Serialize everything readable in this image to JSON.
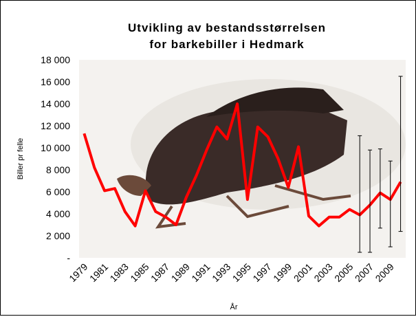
{
  "chart_data": {
    "type": "line",
    "title": "Utvikling av bestandsstørrelsen",
    "subtitle": "for barkebiller i Hedmark",
    "y_label": "Biller pr felle",
    "x_label": "År",
    "categories": [
      "1979",
      null,
      "1981",
      null,
      "1983",
      null,
      "1985",
      null,
      "1987",
      null,
      "1989",
      null,
      "1991",
      null,
      "1993",
      null,
      "1995",
      null,
      "1997",
      null,
      "1999",
      null,
      "2001",
      null,
      "2003",
      null,
      "2005",
      null,
      "2007",
      null,
      "2009",
      null
    ],
    "series": [
      {
        "color": "#ff0000",
        "values": [
          11300,
          8200,
          6100,
          6300,
          4200,
          2900,
          6100,
          4200,
          3700,
          3000,
          5500,
          7500,
          9800,
          11900,
          10800,
          14000,
          5300,
          11900,
          11000,
          9000,
          6400,
          10100,
          3800,
          2900,
          3700,
          3700,
          4400,
          3900,
          4800,
          5900,
          5300,
          6900
        ],
        "error_high": [
          null,
          null,
          null,
          null,
          null,
          null,
          null,
          null,
          null,
          null,
          null,
          null,
          null,
          null,
          null,
          null,
          null,
          null,
          null,
          null,
          null,
          null,
          null,
          null,
          null,
          null,
          null,
          11100,
          9800,
          9900,
          8800,
          16500
        ],
        "error_low": [
          null,
          null,
          null,
          null,
          null,
          null,
          null,
          null,
          null,
          null,
          null,
          null,
          null,
          null,
          null,
          null,
          null,
          null,
          null,
          null,
          null,
          null,
          null,
          null,
          null,
          null,
          null,
          500,
          500,
          2700,
          1000,
          2400
        ]
      }
    ],
    "ylim": [
      0,
      18000
    ],
    "yticks": [
      {
        "value": 0,
        "label": "-"
      },
      {
        "value": 2000,
        "label": "2 000"
      },
      {
        "value": 4000,
        "label": "4 000"
      },
      {
        "value": 6000,
        "label": "6 000"
      },
      {
        "value": 8000,
        "label": "8 000"
      },
      {
        "value": 10000,
        "label": "10 000"
      },
      {
        "value": 12000,
        "label": "12 000"
      },
      {
        "value": 14000,
        "label": "14 000"
      },
      {
        "value": 16000,
        "label": "16 000"
      },
      {
        "value": 18000,
        "label": "18 000"
      }
    ],
    "grid": false
  }
}
